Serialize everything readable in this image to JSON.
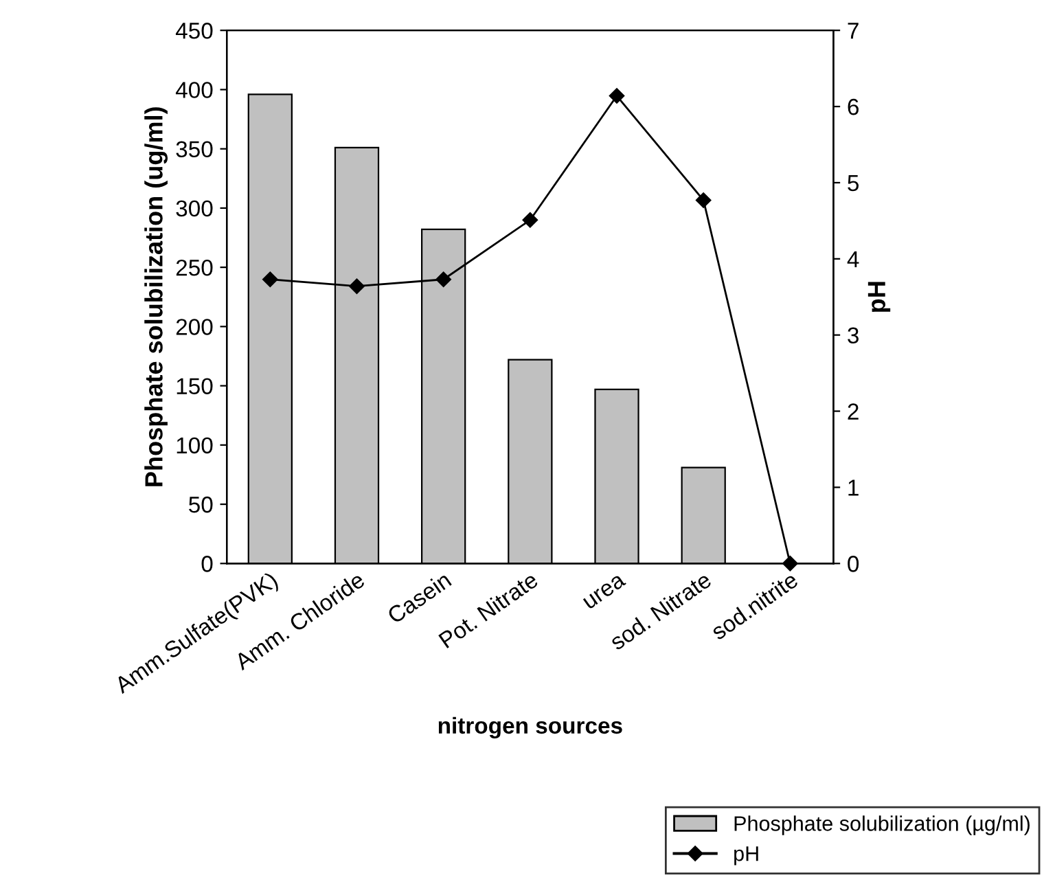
{
  "chart_data": {
    "type": "bar",
    "categories": [
      "Amm.Sulfate(PVK)",
      "Amm. Chloride",
      "Casein",
      "Pot. Nitrate",
      "urea",
      "sod. Nitrate",
      "sod.nitrite"
    ],
    "series": [
      {
        "name": "Phosphate solubilization (µg/ml)",
        "color": "#c0c0c0",
        "values": [
          396,
          351,
          282,
          172,
          147,
          81,
          0
        ]
      },
      {
        "name": "pH",
        "type": "line",
        "axis": "y2",
        "color": "#000000",
        "marker": "diamond",
        "line_style": "solid",
        "values": [
          3.73,
          3.64,
          3.73,
          4.51,
          6.14,
          4.77,
          0
        ]
      }
    ],
    "xlabel": "nitrogen sources",
    "ylabel": "Phosphate solubilization (ug/ml)",
    "y2label": "pH",
    "ylim": [
      0,
      450
    ],
    "yticks": [
      0,
      50,
      100,
      150,
      200,
      250,
      300,
      350,
      400,
      450
    ],
    "y2lim": [
      0,
      7
    ],
    "y2ticks": [
      0,
      1,
      2,
      3,
      4,
      5,
      6,
      7
    ],
    "grid": false,
    "legend": "bottom right"
  }
}
